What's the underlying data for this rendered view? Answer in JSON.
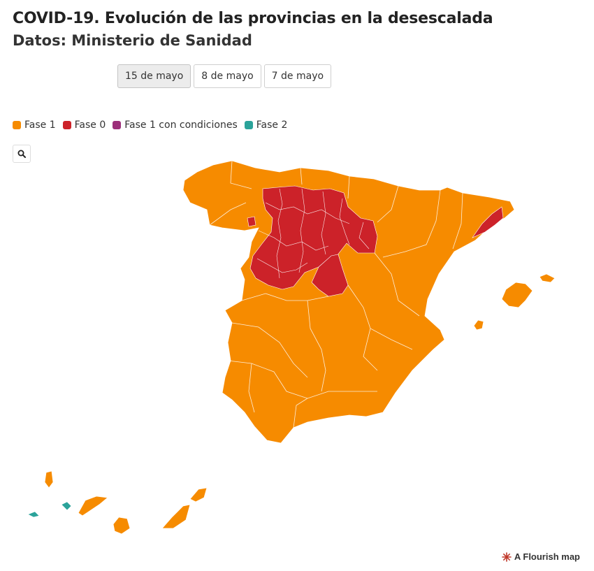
{
  "header": {
    "title": "COVID-19. Evolución de las provincias en la desescalada",
    "subtitle": "Datos: Ministerio de Sanidad"
  },
  "tabs": [
    {
      "label": "15 de mayo",
      "active": true
    },
    {
      "label": "8 de mayo",
      "active": false
    },
    {
      "label": "7 de mayo",
      "active": false
    }
  ],
  "legend": [
    {
      "label": "Fase 1",
      "color": "#F68B00"
    },
    {
      "label": "Fase 0",
      "color": "#CC2229"
    },
    {
      "label": "Fase 1 con condiciones",
      "color": "#9C2F7A"
    },
    {
      "label": "Fase 2",
      "color": "#2BA39A"
    }
  ],
  "map": {
    "region": "Spain",
    "date_shown": "15 de mayo",
    "colors": {
      "fase_1": "#F68B00",
      "fase_0": "#CC2229",
      "fase_2": "#2BA39A",
      "border": "#ffffff"
    }
  },
  "controls": {
    "search_icon": "magnifier-icon"
  },
  "credit": {
    "label": "A Flourish map",
    "icon": "flourish-logo-icon"
  }
}
